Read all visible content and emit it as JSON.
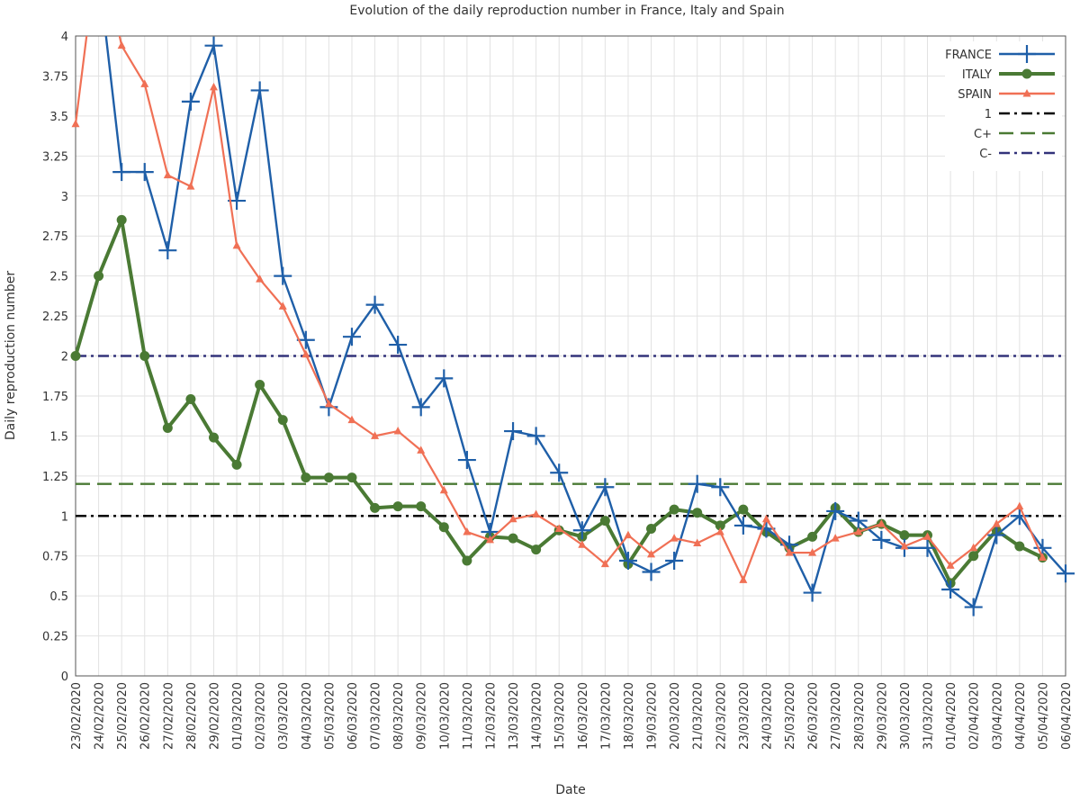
{
  "chart_data": {
    "type": "line",
    "title": "Evolution of the daily reproduction number in France, Italy and Spain",
    "xlabel": "Date",
    "ylabel": "Daily reproduction number",
    "ylim": [
      0,
      4
    ],
    "yticks": [
      "0",
      "0.25",
      "0.5",
      "0.75",
      "1",
      "1.25",
      "1.5",
      "1.75",
      "2",
      "2.25",
      "2.5",
      "2.75",
      "3",
      "3.25",
      "3.5",
      "3.75",
      "4"
    ],
    "grid": true,
    "legend_position": "top-right",
    "x": [
      "23/02/2020",
      "24/02/2020",
      "25/02/2020",
      "26/02/2020",
      "27/02/2020",
      "28/02/2020",
      "29/02/2020",
      "01/03/2020",
      "02/03/2020",
      "03/03/2020",
      "04/03/2020",
      "05/03/2020",
      "06/03/2020",
      "07/03/2020",
      "08/03/2020",
      "09/03/2020",
      "10/03/2020",
      "11/03/2020",
      "12/03/2020",
      "13/03/2020",
      "14/03/2020",
      "15/03/2020",
      "16/03/2020",
      "17/03/2020",
      "18/03/2020",
      "19/03/2020",
      "20/03/2020",
      "21/03/2020",
      "22/03/2020",
      "23/03/2020",
      "24/03/2020",
      "25/03/2020",
      "26/03/2020",
      "27/03/2020",
      "28/03/2020",
      "29/03/2020",
      "30/03/2020",
      "31/03/2020",
      "01/04/2020",
      "02/04/2020",
      "03/04/2020",
      "04/04/2020",
      "05/04/2020",
      "06/04/2020"
    ],
    "series": [
      {
        "name": "FRANCE",
        "color": "#1f5fa8",
        "marker": "plus",
        "values": [
          null,
          4.4,
          3.15,
          3.15,
          2.66,
          3.59,
          3.94,
          2.97,
          3.66,
          2.5,
          2.1,
          1.68,
          2.12,
          2.32,
          2.07,
          1.68,
          1.86,
          1.35,
          0.9,
          1.53,
          1.5,
          1.27,
          0.91,
          1.18,
          0.72,
          0.65,
          0.72,
          1.2,
          1.18,
          0.94,
          0.92,
          0.82,
          0.52,
          1.03,
          0.97,
          0.85,
          0.8,
          0.8,
          0.54,
          0.43,
          0.88,
          1.0,
          0.8,
          0.64
        ]
      },
      {
        "name": "ITALY",
        "color": "#4a7a34",
        "marker": "circle",
        "values": [
          2.0,
          2.5,
          2.85,
          2.0,
          1.55,
          1.73,
          1.49,
          1.32,
          1.82,
          1.6,
          1.24,
          1.24,
          1.24,
          1.05,
          1.06,
          1.06,
          0.93,
          0.72,
          0.87,
          0.86,
          0.79,
          0.91,
          0.87,
          0.97,
          0.7,
          0.92,
          1.04,
          1.02,
          0.94,
          1.04,
          0.9,
          0.8,
          0.87,
          1.05,
          0.9,
          0.95,
          0.88,
          0.88,
          0.58,
          0.75,
          0.91,
          0.81,
          0.74,
          null
        ]
      },
      {
        "name": "SPAIN",
        "color": "#f07055",
        "marker": "triangle",
        "values": [
          3.45,
          4.6,
          3.94,
          3.7,
          3.13,
          3.06,
          3.68,
          2.69,
          2.48,
          2.31,
          2.01,
          1.7,
          1.6,
          1.5,
          1.53,
          1.41,
          1.16,
          0.9,
          0.85,
          0.98,
          1.01,
          0.92,
          0.82,
          0.7,
          0.88,
          0.76,
          0.86,
          0.83,
          0.9,
          0.6,
          0.98,
          0.77,
          0.77,
          0.86,
          0.9,
          0.95,
          0.81,
          0.87,
          0.69,
          0.8,
          0.95,
          1.06,
          0.74,
          null
        ]
      }
    ],
    "reference_lines": [
      {
        "name": "1",
        "value": 1,
        "color": "#000000",
        "style": "dash-dot"
      },
      {
        "name": "C+",
        "value": 1.2,
        "color": "#4a7a34",
        "style": "dashed"
      },
      {
        "name": "C-",
        "value": 2,
        "color": "#33337a",
        "style": "dash-dot"
      }
    ]
  }
}
